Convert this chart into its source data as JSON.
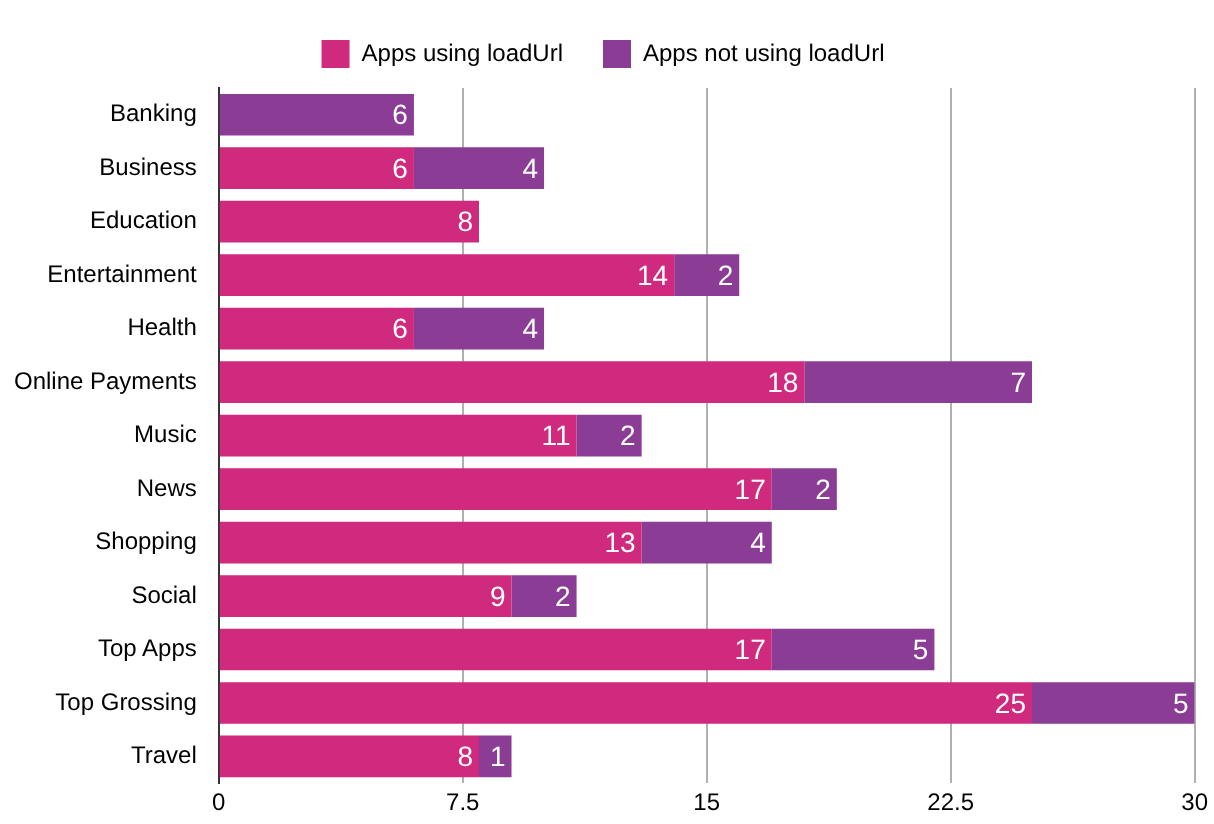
{
  "chart_data": {
    "type": "bar",
    "orientation": "horizontal",
    "stacked": true,
    "categories": [
      "Banking",
      "Business",
      "Education",
      "Entertainment",
      "Health",
      "Online Payments",
      "Music",
      "News",
      "Shopping",
      "Social",
      "Top Apps",
      "Top Grossing",
      "Travel"
    ],
    "series": [
      {
        "name": "Apps using loadUrl",
        "color": "#cf2a7d",
        "values": [
          null,
          6,
          8,
          14,
          6,
          18,
          11,
          17,
          13,
          9,
          17,
          25,
          8
        ]
      },
      {
        "name": "Apps not using loadUrl",
        "color": "#8b3d95",
        "values": [
          6,
          4,
          null,
          2,
          4,
          7,
          2,
          2,
          4,
          2,
          5,
          5,
          1
        ]
      }
    ],
    "xlim": [
      0,
      30
    ],
    "xticks": [
      0,
      7.5,
      15,
      22.5,
      30
    ],
    "grid": "x",
    "legend": "top",
    "data_labels": true
  }
}
